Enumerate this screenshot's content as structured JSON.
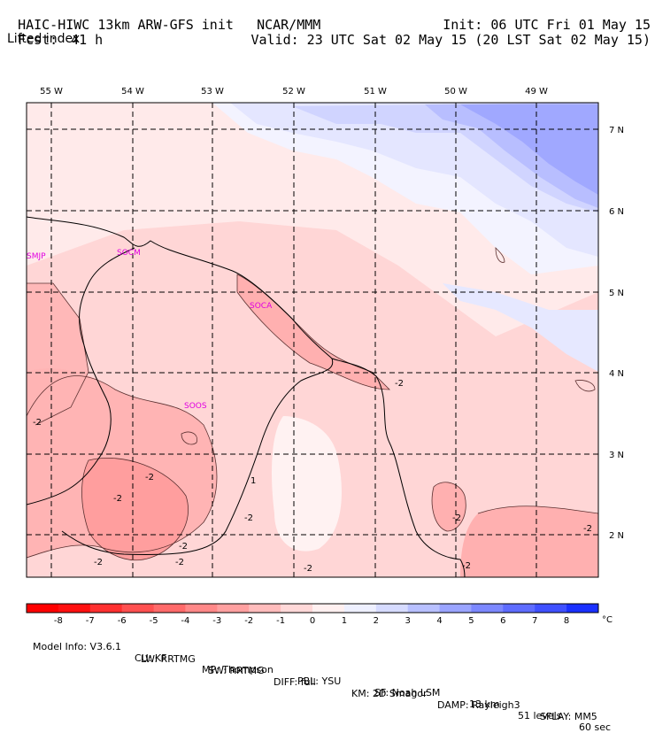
{
  "header": {
    "model": "HAIC-HIWC 13km ARW-GFS init",
    "org": "NCAR/MMM",
    "fcst_label": "Fcst:",
    "fcst_value": "41 h",
    "init": "Init: 06 UTC Fri 01 May 15",
    "valid": "Valid: 23 UTC Sat 02 May 15 (20 LST Sat 02 May 15)",
    "field": "Lifted index"
  },
  "map": {
    "lon_labels": [
      "55 W",
      "54 W",
      "53 W",
      "52 W",
      "51 W",
      "50 W",
      "49 W"
    ],
    "lat_labels": [
      "7 N",
      "6 N",
      "5 N",
      "4 N",
      "3 N",
      "2 N"
    ],
    "stations": [
      "SMJP",
      "SOCM",
      "SOCA",
      "SOOS"
    ],
    "contour_labels": [
      "-2",
      "-2",
      "-2",
      "-2",
      "-2",
      "-2",
      "-2",
      "-2",
      "-2",
      "-2",
      "-2",
      "-2",
      "1"
    ]
  },
  "colorbar": {
    "ticks": [
      "-8",
      "-7",
      "-6",
      "-5",
      "-4",
      "-3",
      "-2",
      "-1",
      "0",
      "1",
      "2",
      "3",
      "4",
      "5",
      "6",
      "7",
      "8"
    ],
    "unit": "°C",
    "colors": [
      "#ff1010",
      "#ff3030",
      "#ff5050",
      "#ff6a6a",
      "#ff8888",
      "#ffa0a0",
      "#ffbcbc",
      "#ffd8d8",
      "#fff0f0",
      "#eef0ff",
      "#d6dbff",
      "#b8c0ff",
      "#9aa4ff",
      "#7c88ff",
      "#5e6cff",
      "#3f50ff",
      "#1a30ff"
    ]
  },
  "footer": {
    "line1": [
      "Model Info: V3.6.1",
      "CU: KF",
      "MP: Thompson",
      "PBL: YSU",
      "SF: Noah LSM",
      "13 km",
      "51 levels",
      "60 sec"
    ],
    "line2": [
      "LW: RRTMG",
      "SW: RRTMG",
      "DIFF: full",
      "KM: 2D Smagor",
      "DAMP: Rayleigh3",
      "SFLAY: MM5"
    ]
  }
}
